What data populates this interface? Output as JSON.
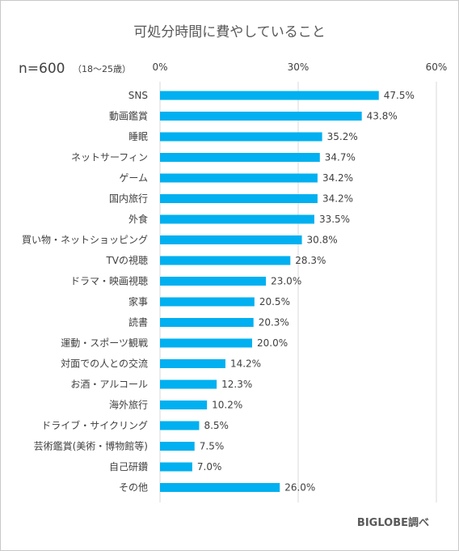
{
  "chart_data": {
    "type": "bar",
    "orientation": "horizontal",
    "title": "可処分時間に費やしていること",
    "sample_size": "n=600",
    "sample_note": "（18～25歳）",
    "source_note": "BIGLOBE調べ",
    "xlim": [
      0,
      60
    ],
    "x_ticks": [
      "0%",
      "30%",
      "60%"
    ],
    "value_suffix": "%",
    "grid": true,
    "bar_color": "#00b0f0",
    "categories": [
      "SNS",
      "動画鑑賞",
      "睡眠",
      "ネットサーフィン",
      "ゲーム",
      "国内旅行",
      "外食",
      "買い物・ネットショッピング",
      "TVの視聴",
      "ドラマ・映画視聴",
      "家事",
      "読書",
      "運動・スポーツ観戦",
      "対面での人との交流",
      "お酒・アルコール",
      "海外旅行",
      "ドライブ・サイクリング",
      "芸術鑑賞(美術・博物館等)",
      "自己研鑽",
      "その他"
    ],
    "values": [
      47.5,
      43.8,
      35.2,
      34.7,
      34.2,
      34.2,
      33.5,
      30.8,
      28.3,
      23.0,
      20.5,
      20.3,
      20.0,
      14.2,
      12.3,
      10.2,
      8.5,
      7.5,
      7.0,
      26.0
    ]
  }
}
